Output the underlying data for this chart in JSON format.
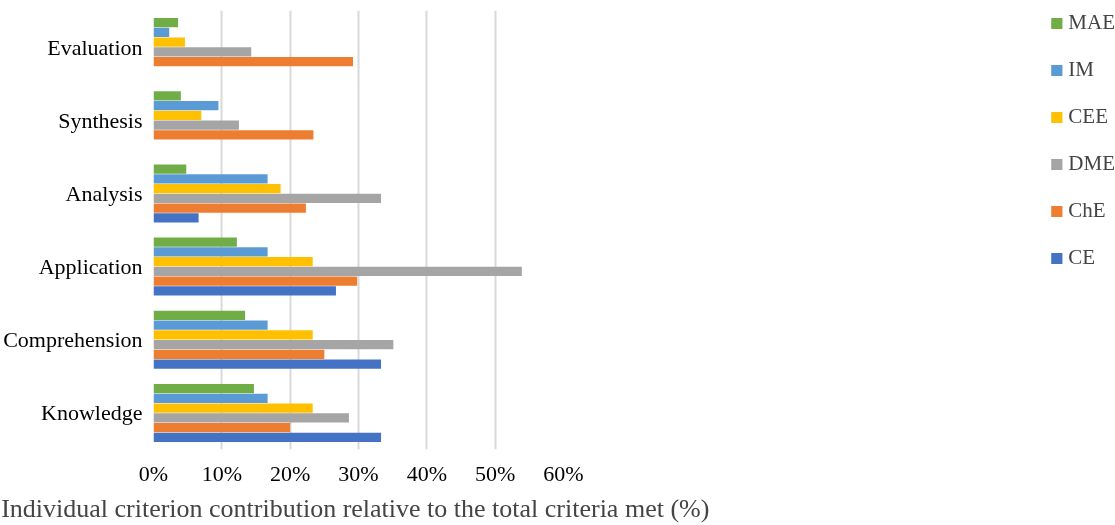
{
  "chart_data": {
    "type": "bar",
    "orientation": "horizontal",
    "xlabel": "Individual criterion contribution relative to the total criteria met  (%)",
    "categories": [
      "Evaluation",
      "Synthesis",
      "Analysis",
      "Application",
      "Comprehension",
      "Knowledge"
    ],
    "series": [
      {
        "name": "CE",
        "color": "#4472c4",
        "values": [
          0,
          0,
          6.6,
          26.7,
          33.3,
          33.3
        ]
      },
      {
        "name": "ChE",
        "color": "#ed7d31",
        "values": [
          29.2,
          23.4,
          22.3,
          29.8,
          25.0,
          20.0
        ]
      },
      {
        "name": "DME",
        "color": "#a5a5a5",
        "values": [
          14.3,
          12.5,
          33.3,
          53.9,
          35.1,
          28.6
        ]
      },
      {
        "name": "CEE",
        "color": "#ffc000",
        "values": [
          4.6,
          7.0,
          18.6,
          23.3,
          23.3,
          23.3
        ]
      },
      {
        "name": "IM",
        "color": "#5b9bd5",
        "values": [
          2.3,
          9.5,
          16.7,
          16.7,
          16.7,
          16.7
        ]
      },
      {
        "name": "MAE",
        "color": "#70ad47",
        "values": [
          3.6,
          4.0,
          4.8,
          12.2,
          13.4,
          14.7
        ]
      }
    ],
    "xlim": [
      0,
      60
    ],
    "xticks": [
      {
        "value": 0,
        "label": "0%"
      },
      {
        "value": 10,
        "label": "10%"
      },
      {
        "value": 20,
        "label": "20%"
      },
      {
        "value": 30,
        "label": "30%"
      },
      {
        "value": 40,
        "label": "40%"
      },
      {
        "value": 50,
        "label": "50%"
      },
      {
        "value": 60,
        "label": "60%"
      }
    ],
    "grid": "x",
    "legend": "right"
  }
}
